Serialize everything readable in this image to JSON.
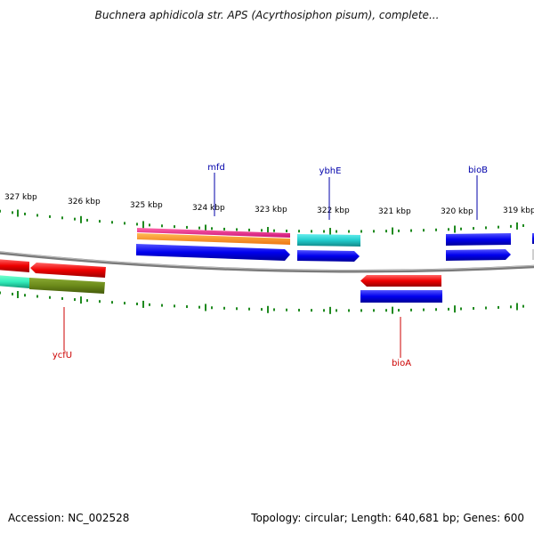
{
  "title": "Buchnera aphidicola str. APS (Acyrthosiphon pisum), complete...",
  "footer": {
    "accession": "Accession: NC_002528",
    "summary": "Topology: circular; Length: 640,681 bp; Genes: 600"
  },
  "colors": {
    "tick": "#1f8a1f",
    "backbone": "#808080",
    "label_forward": "#0000aa",
    "label_reverse": "#cc0000",
    "red": "#ff1a1a",
    "blue": "#1010ee",
    "cyan": "#22cccc",
    "teal": "#33eebb",
    "olive": "#6b8a1a",
    "magenta": "#ee2288",
    "orange": "#ff9922"
  },
  "kbp_labels": [
    "327 kbp",
    "326 kbp",
    "325 kbp",
    "324 kbp",
    "323 kbp",
    "322 kbp",
    "321 kbp",
    "320 kbp",
    "319 kbp"
  ],
  "gene_labels": {
    "mfd": "mfd",
    "ybhE": "ybhE",
    "bioB": "bioB",
    "ycfU": "ycfU",
    "bioA": "bioA"
  }
}
